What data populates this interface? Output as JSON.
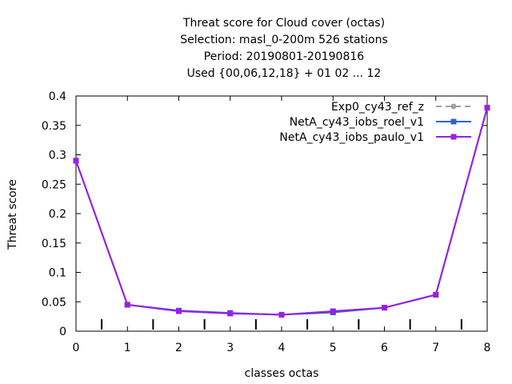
{
  "chart_data": {
    "type": "line",
    "title_lines": [
      "Threat score  for Cloud cover (octas)",
      "Selection: masl_0-200m    526 stations",
      "Period: 20190801-20190816",
      "Used {00,06,12,18} + 01 02 ... 12"
    ],
    "xlabel": "classes octas",
    "ylabel": "Threat score",
    "xlim": [
      0,
      8
    ],
    "ylim": [
      0,
      0.4
    ],
    "xticks": [
      0,
      1,
      2,
      3,
      4,
      5,
      6,
      7,
      8
    ],
    "yticks": [
      0,
      0.05,
      0.1,
      0.15,
      0.2,
      0.25,
      0.3,
      0.35,
      0.4
    ],
    "ytick_labels": [
      "0",
      "0.05",
      "0.1",
      "0.15",
      "0.2",
      "0.25",
      "0.3",
      "0.35",
      "0.4"
    ],
    "minor_xticks": [
      0.5,
      1.5,
      2.5,
      3.5,
      4.5,
      5.5,
      6.5,
      7.5
    ],
    "grid": false,
    "legend_position": "top-right",
    "x": [
      0,
      1,
      2,
      3,
      4,
      5,
      6,
      7,
      8
    ],
    "series": [
      {
        "name": "Exp0_cy43_ref_z",
        "values": [
          0.29,
          0.045,
          0.035,
          0.031,
          0.028,
          0.033,
          0.04,
          0.062,
          0.38
        ],
        "color": "#a0a0a0",
        "dash": true,
        "marker": "circle"
      },
      {
        "name": "NetA_cy43_iobs_roel_v1",
        "values": [
          0.29,
          0.045,
          0.035,
          0.031,
          0.028,
          0.032,
          0.04,
          0.062,
          0.38
        ],
        "color": "#3264c8",
        "dash": false,
        "marker": "square"
      },
      {
        "name": "NetA_cy43_iobs_paulo_v1",
        "values": [
          0.29,
          0.045,
          0.034,
          0.03,
          0.028,
          0.034,
          0.04,
          0.062,
          0.38
        ],
        "color": "#9a1ee6",
        "dash": false,
        "marker": "square"
      }
    ]
  }
}
